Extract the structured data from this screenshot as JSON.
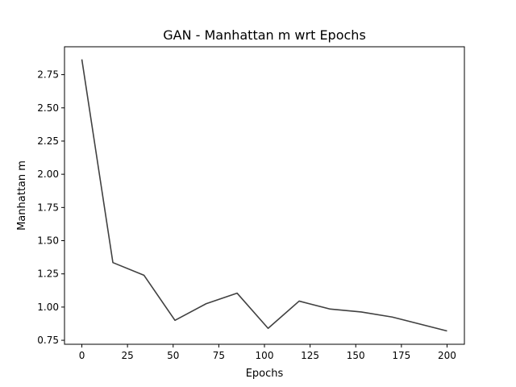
{
  "chart_data": {
    "type": "line",
    "title": "GAN - Manhattan m wrt Epochs",
    "xlabel": "Epochs",
    "ylabel": "Manhattan m",
    "xlim": [
      -9.5,
      209.5
    ],
    "ylim": [
      0.72,
      2.96
    ],
    "xticks": [
      0,
      25,
      50,
      75,
      100,
      125,
      150,
      175,
      200
    ],
    "yticks": [
      0.75,
      1.0,
      1.25,
      1.5,
      1.75,
      2.0,
      2.25,
      2.5,
      2.75
    ],
    "xtick_labels": [
      "0",
      "25",
      "50",
      "75",
      "100",
      "125",
      "150",
      "175",
      "200"
    ],
    "ytick_labels": [
      "0.75",
      "1.00",
      "1.25",
      "1.50",
      "1.75",
      "2.00",
      "2.25",
      "2.50",
      "2.75"
    ],
    "grid": false,
    "line_color": "#404040",
    "series": [
      {
        "x": [
          0,
          17,
          34,
          51,
          68,
          85,
          102,
          119,
          136,
          153,
          170,
          200
        ],
        "values": [
          2.865,
          1.335,
          1.24,
          0.9,
          1.025,
          1.105,
          0.84,
          1.045,
          0.985,
          0.963,
          0.925,
          0.82
        ]
      }
    ]
  }
}
